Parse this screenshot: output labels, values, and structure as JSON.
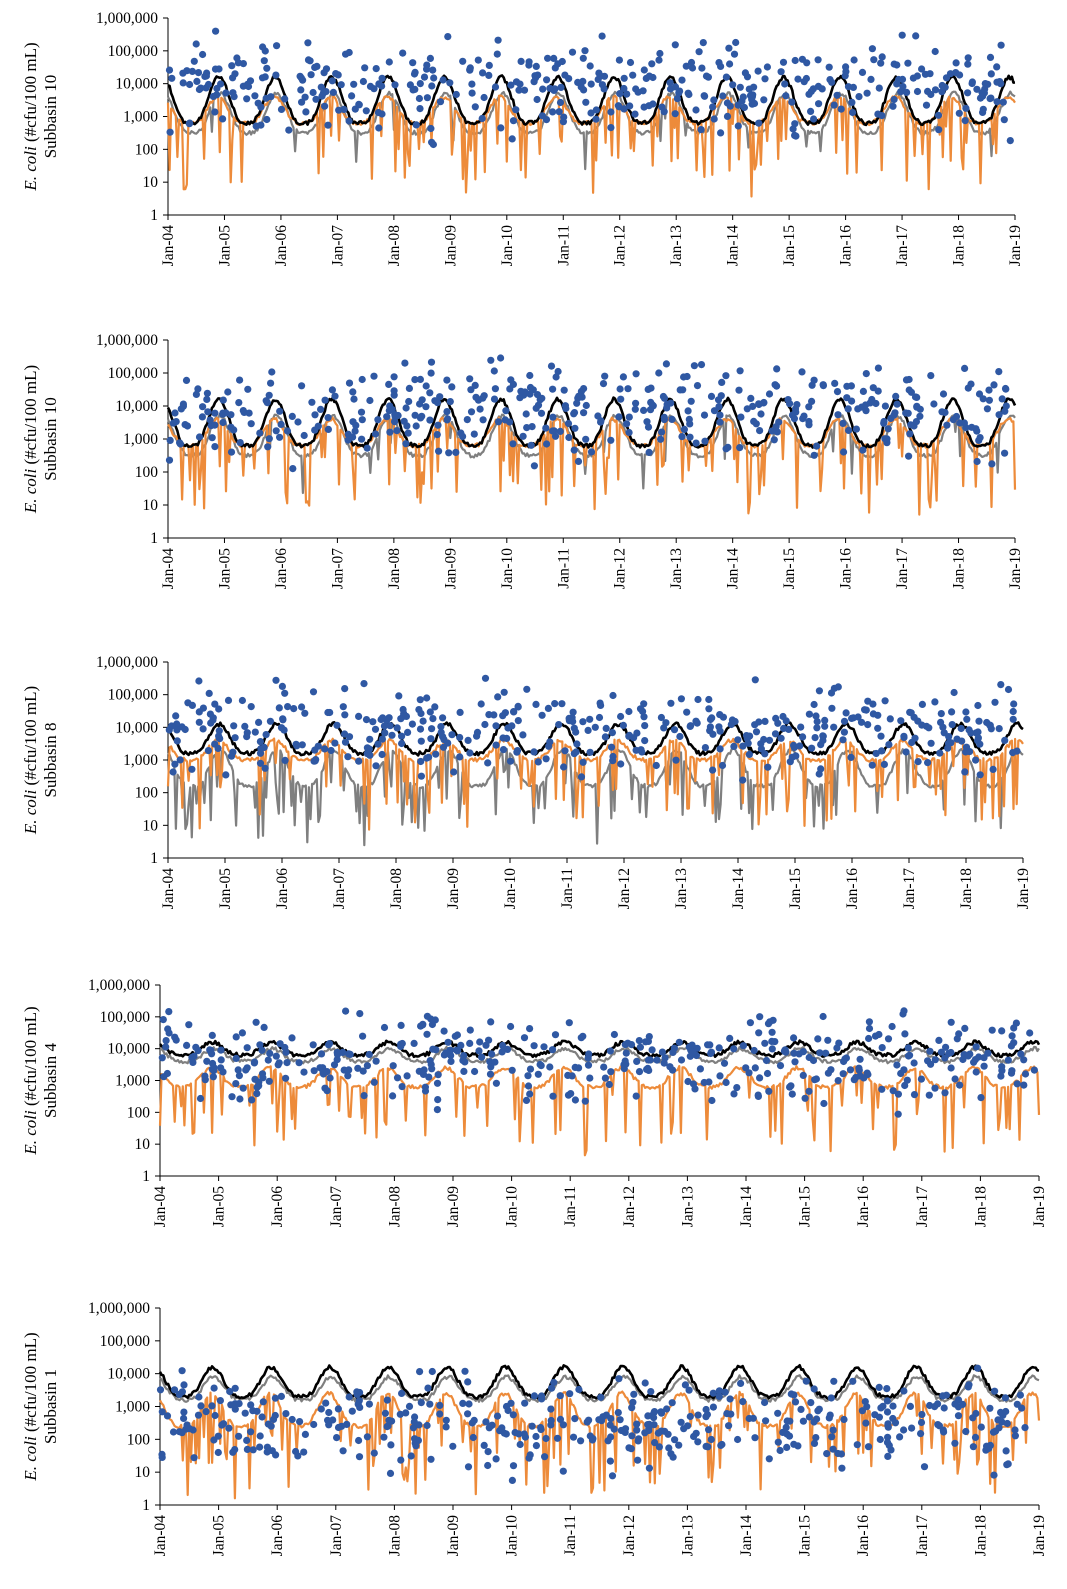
{
  "chart_data": [
    {
      "type": "line",
      "ylabel_italic": "E. coli",
      "ylabel_rest": " (#cfu/100 mL)",
      "ylabel_line2": "Subbasin 10",
      "yscale": "log",
      "ylim": [
        1,
        1000000
      ],
      "y_ticks": [
        "1,000,000",
        "100,000",
        "10,000",
        "1,000",
        "100",
        "10",
        "1"
      ],
      "x_ticks": [
        "Jan-04",
        "Jan-05",
        "Jan-06",
        "Jan-07",
        "Jan-08",
        "Jan-09",
        "Jan-10",
        "Jan-11",
        "Jan-12",
        "Jan-13",
        "Jan-14",
        "Jan-15",
        "Jan-16",
        "Jan-17",
        "Jan-18",
        "Jan-19"
      ],
      "xlim": [
        "2004-01",
        "2019-01"
      ],
      "colors": {
        "black": "#000000",
        "gray": "#7f7f7f",
        "orange": "#ED8B3A",
        "points": "#2F58A3"
      },
      "line_levels": {
        "black": [
          2.8,
          4.2
        ],
        "gray": [
          2.5,
          3.7
        ],
        "orange": [
          2.8,
          3.6
        ]
      },
      "orange_dips": "deep",
      "gray_dips": "few",
      "points_center": 3.85
    },
    {
      "type": "line",
      "ylabel_italic": "E. coli",
      "ylabel_rest": " (#cfu/100 mL)",
      "ylabel_line2": "Subbasin 10",
      "yscale": "log",
      "ylim": [
        1,
        1000000
      ],
      "y_ticks": [
        "1,000,000",
        "100,000",
        "10,000",
        "1,000",
        "100",
        "10",
        "1"
      ],
      "x_ticks": [
        "Jan-04",
        "Jan-05",
        "Jan-06",
        "Jan-07",
        "Jan-08",
        "Jan-09",
        "Jan-10",
        "Jan-11",
        "Jan-12",
        "Jan-13",
        "Jan-14",
        "Jan-15",
        "Jan-16",
        "Jan-17",
        "Jan-18",
        "Jan-19"
      ],
      "xlim": [
        "2004-01",
        "2019-01"
      ],
      "colors": {
        "black": "#000000",
        "gray": "#7f7f7f",
        "orange": "#ED8B3A",
        "points": "#2F58A3"
      },
      "line_levels": {
        "black": [
          2.8,
          4.2
        ],
        "gray": [
          2.5,
          3.7
        ],
        "orange": [
          2.8,
          3.6
        ]
      },
      "orange_dips": "deep",
      "gray_dips": "few",
      "points_center": 3.85
    },
    {
      "type": "line",
      "ylabel_italic": "E. coli",
      "ylabel_rest": " (#cfu/100 mL)",
      "ylabel_line2": "Subbasin 8",
      "yscale": "log",
      "ylim": [
        1,
        1000000
      ],
      "y_ticks": [
        "1,000,000",
        "100,000",
        "10,000",
        "1,000",
        "100",
        "10",
        "1"
      ],
      "x_ticks": [
        "Jan-04",
        "Jan-05",
        "Jan-06",
        "Jan-07",
        "Jan-08",
        "Jan-09",
        "Jan-10",
        "Jan-11",
        "Jan-12",
        "Jan-13",
        "Jan-14",
        "Jan-15",
        "Jan-16",
        "Jan-17",
        "Jan-18",
        "Jan-19"
      ],
      "xlim": [
        "2004-01",
        "2019-01"
      ],
      "colors": {
        "black": "#000000",
        "gray": "#7f7f7f",
        "orange": "#ED8B3A",
        "points": "#2F58A3"
      },
      "line_levels": {
        "black": [
          3.2,
          4.1
        ],
        "gray": [
          2.2,
          3.3
        ],
        "orange": [
          3.0,
          3.6
        ]
      },
      "orange_dips": "deep",
      "gray_dips": "many",
      "points_center": 3.9
    },
    {
      "type": "line",
      "ylabel_italic": "E. coli",
      "ylabel_rest": " (#cfu/100 mL)",
      "ylabel_line2": "Subbasin 4",
      "yscale": "log",
      "ylim": [
        1,
        1000000
      ],
      "y_ticks": [
        "1,000,000",
        "100,000",
        "10,000",
        "1,000",
        "100",
        "10",
        "1"
      ],
      "x_ticks": [
        "Jan-04",
        "Jan-05",
        "Jan-06",
        "Jan-07",
        "Jan-08",
        "Jan-09",
        "Jan-10",
        "Jan-11",
        "Jan-12",
        "Jan-13",
        "Jan-14",
        "Jan-15",
        "Jan-16",
        "Jan-17",
        "Jan-18",
        "Jan-19"
      ],
      "xlim": [
        "2004-01",
        "2019-01"
      ],
      "colors": {
        "black": "#000000",
        "gray": "#7f7f7f",
        "orange": "#ED8B3A",
        "points": "#2F58A3"
      },
      "line_levels": {
        "black": [
          3.8,
          4.2
        ],
        "gray": [
          3.6,
          4.0
        ],
        "orange": [
          2.8,
          3.4
        ]
      },
      "orange_dips": "deep",
      "gray_dips": "none",
      "points_center": 3.7
    },
    {
      "type": "line",
      "ylabel_italic": "E. coli",
      "ylabel_rest": " (#cfu/100 mL)",
      "ylabel_line2": "Subbasin 1",
      "yscale": "log",
      "ylim": [
        1,
        1000000
      ],
      "y_ticks": [
        "1,000,000",
        "100,000",
        "10,000",
        "1,000",
        "100",
        "10",
        "1"
      ],
      "x_ticks": [
        "Jan-04",
        "Jan-05",
        "Jan-06",
        "Jan-07",
        "Jan-08",
        "Jan-09",
        "Jan-10",
        "Jan-11",
        "Jan-12",
        "Jan-13",
        "Jan-14",
        "Jan-15",
        "Jan-16",
        "Jan-17",
        "Jan-18",
        "Jan-19"
      ],
      "xlim": [
        "2004-01",
        "2019-01"
      ],
      "colors": {
        "black": "#000000",
        "gray": "#7f7f7f",
        "orange": "#ED8B3A",
        "points": "#2F58A3"
      },
      "line_levels": {
        "black": [
          3.3,
          4.2
        ],
        "gray": [
          3.2,
          3.9
        ],
        "orange": [
          2.4,
          3.4
        ]
      },
      "orange_dips": "deep",
      "gray_dips": "none",
      "points_center": 2.5
    }
  ]
}
